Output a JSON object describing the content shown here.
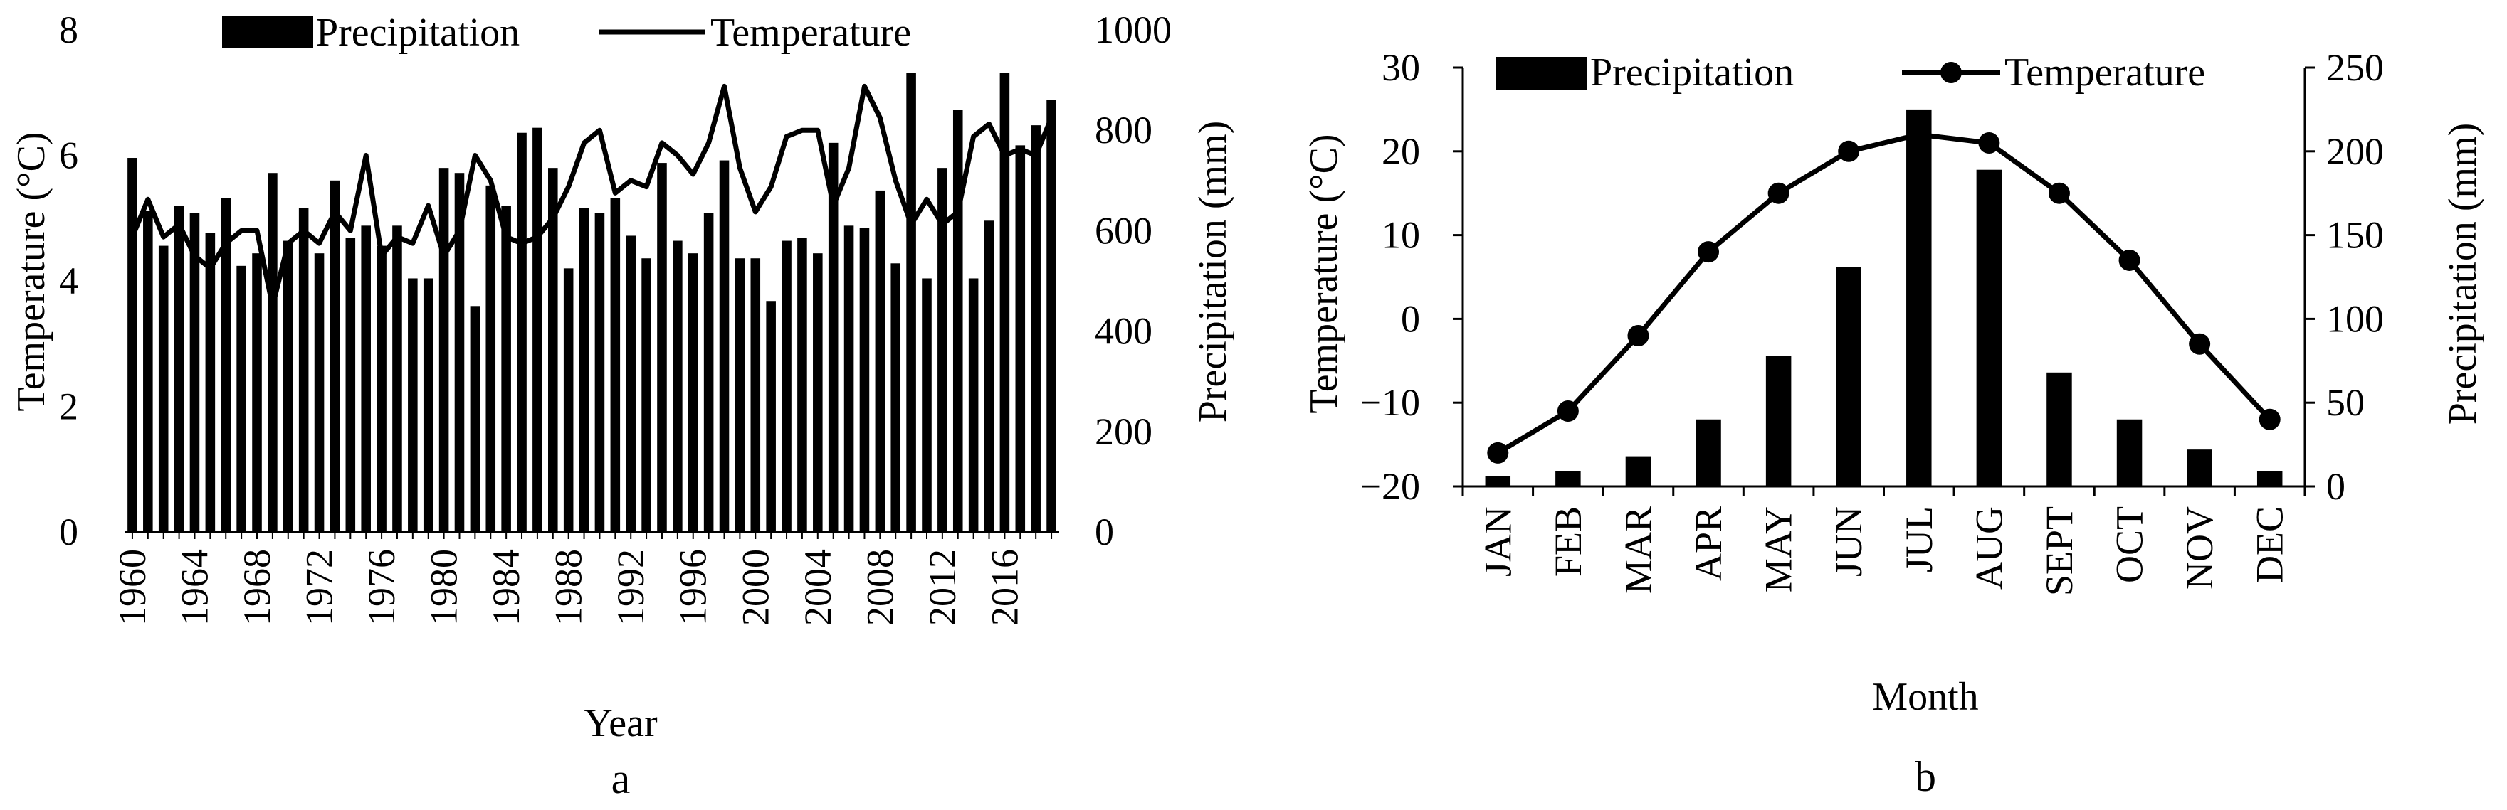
{
  "chart_data": [
    {
      "type": "bar+line",
      "panel_label": "a",
      "xlabel": "Year",
      "ylabel_left": "Temperature (°C)",
      "ylabel_right": "Precipitation (mm)",
      "ylim_left": [
        0,
        8
      ],
      "yticks_left": [
        "0",
        "2",
        "4",
        "6",
        "8"
      ],
      "ylim_right": [
        0,
        1000
      ],
      "yticks_right": [
        "0",
        "200",
        "400",
        "600",
        "800",
        "1000"
      ],
      "xtick_labels": [
        "1960",
        "1964",
        "1968",
        "1972",
        "1976",
        "1980",
        "1984",
        "1988",
        "1992",
        "1996",
        "2000",
        "2004",
        "2008",
        "2012",
        "2016"
      ],
      "legend": [
        "Precipitation",
        "Temperature"
      ],
      "years": [
        1960,
        1961,
        1962,
        1963,
        1964,
        1965,
        1966,
        1967,
        1968,
        1969,
        1970,
        1971,
        1972,
        1973,
        1974,
        1975,
        1976,
        1977,
        1978,
        1979,
        1980,
        1981,
        1982,
        1983,
        1984,
        1985,
        1986,
        1987,
        1988,
        1989,
        1990,
        1991,
        1992,
        1993,
        1994,
        1995,
        1996,
        1997,
        1998,
        1999,
        2000,
        2001,
        2002,
        2003,
        2004,
        2005,
        2006,
        2007,
        2008,
        2009,
        2010,
        2011,
        2012,
        2013,
        2014,
        2015,
        2016,
        2017,
        2018,
        2019
      ],
      "precipitation": [
        745,
        640,
        570,
        650,
        635,
        595,
        665,
        530,
        555,
        715,
        580,
        645,
        555,
        700,
        585,
        610,
        570,
        610,
        505,
        505,
        725,
        715,
        450,
        690,
        650,
        795,
        805,
        725,
        525,
        645,
        635,
        665,
        590,
        545,
        735,
        580,
        555,
        635,
        740,
        545,
        545,
        460,
        580,
        585,
        555,
        775,
        610,
        605,
        680,
        535,
        915,
        505,
        725,
        840,
        505,
        620,
        915,
        770,
        810,
        860
      ],
      "temperature": [
        4.7,
        5.3,
        4.7,
        4.9,
        4.4,
        4.2,
        4.6,
        4.8,
        4.8,
        3.6,
        4.6,
        4.8,
        4.6,
        5.1,
        4.8,
        6.0,
        4.4,
        4.7,
        4.6,
        5.2,
        4.4,
        4.8,
        6.0,
        5.6,
        4.7,
        4.6,
        4.7,
        5.0,
        5.5,
        6.2,
        6.4,
        5.4,
        5.6,
        5.5,
        6.2,
        6.0,
        5.7,
        6.2,
        7.1,
        5.8,
        5.1,
        5.5,
        6.3,
        6.4,
        6.4,
        5.2,
        5.8,
        7.1,
        6.6,
        5.6,
        4.9,
        5.3,
        4.9,
        5.1,
        6.3,
        6.5,
        6.0,
        6.1,
        6.0,
        6.6
      ]
    },
    {
      "type": "bar+line",
      "panel_label": "b",
      "xlabel": "Month",
      "ylabel_left": "Temperature (°C)",
      "ylabel_right": "Precipitation (mm)",
      "ylim_left": [
        -20,
        30
      ],
      "yticks_left": [
        "−20",
        "−10",
        "0",
        "10",
        "20",
        "30"
      ],
      "ylim_right": [
        0,
        250
      ],
      "yticks_right": [
        "0",
        "50",
        "100",
        "150",
        "200",
        "250"
      ],
      "legend": [
        "Precipitation",
        "Temperature"
      ],
      "months": [
        "JAN",
        "FEB",
        "MAR",
        "APR",
        "MAY",
        "JUN",
        "JUL",
        "AUG",
        "SEPT",
        "OCT",
        "NOV",
        "DEC"
      ],
      "precipitation": [
        6,
        9,
        18,
        40,
        78,
        131,
        225,
        189,
        68,
        40,
        22,
        9
      ],
      "temperature": [
        -16,
        -11,
        -2,
        8,
        15,
        20,
        22,
        21,
        15,
        7,
        -3,
        -12
      ]
    }
  ]
}
